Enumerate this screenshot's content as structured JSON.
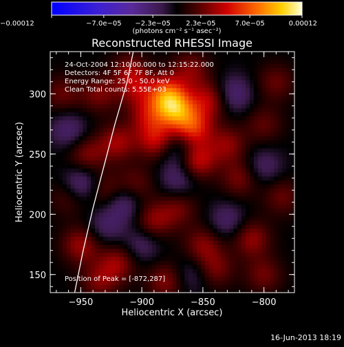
{
  "chart_data": {
    "type": "heatmap",
    "title": "Reconstructed RHESSI Image",
    "xlabel": "Heliocentric X (arcsec)",
    "ylabel": "Heliocentric Y (arcsec)",
    "xlim": [
      -975,
      -775
    ],
    "ylim": [
      135,
      335
    ],
    "x_ticks": [
      {
        "value": -950,
        "label": "−950"
      },
      {
        "value": -900,
        "label": "−900"
      },
      {
        "value": -850,
        "label": "−850"
      },
      {
        "value": -800,
        "label": "−800"
      }
    ],
    "y_ticks": [
      {
        "value": 150,
        "label": "150"
      },
      {
        "value": 200,
        "label": "200"
      },
      {
        "value": 250,
        "label": "250"
      },
      {
        "value": 300,
        "label": "300"
      }
    ],
    "colorbar": {
      "range": [
        -0.00012,
        0.00012
      ],
      "unit_label": "(photons cm⁻² s⁻¹ asec⁻²)",
      "ticks": [
        {
          "value": -0.00012,
          "label": "−0.00012"
        },
        {
          "value": -7e-05,
          "label": "−7.0e−05"
        },
        {
          "value": -2.3e-05,
          "label": "−2.3e−05"
        },
        {
          "value": 2.3e-05,
          "label": "2.3e−05"
        },
        {
          "value": 7e-05,
          "label": "7.0e−05"
        },
        {
          "value": 0.00012,
          "label": "0.00012"
        }
      ]
    },
    "annotations": [
      "24-Oct-2004 12:10:00.000 to 12:15:22.000",
      "Detectors: 4F 5F 6F 7F 8F, Att 0",
      "Energy Range: 25.0 - 50.0 keV",
      "Clean     Total counts: 5.55E+03"
    ],
    "peak_label": "Position of Peak = [-872,287]",
    "peak": [
      -872,
      287
    ],
    "limb_curve": [
      [
        -955,
        135
      ],
      [
        -948,
        170
      ],
      [
        -940,
        205
      ],
      [
        -931,
        240
      ],
      [
        -922,
        275
      ],
      [
        -912,
        310
      ],
      [
        -907,
        335
      ]
    ],
    "sources": [
      [
        -872,
        287,
        7e-05
      ],
      [
        -858,
        272,
        5.5e-05
      ],
      [
        -880,
        300,
        6e-05
      ],
      [
        -888,
        262,
        4.5e-05
      ],
      [
        -845,
        295,
        4e-05
      ],
      [
        -855,
        245,
        4.8e-05
      ],
      [
        -830,
        258,
        3.2e-05
      ],
      [
        -895,
        282,
        3.5e-05
      ],
      [
        -905,
        305,
        3e-05
      ],
      [
        -920,
        260,
        3.6e-05
      ],
      [
        -935,
        300,
        2.8e-05
      ],
      [
        -945,
        250,
        3e-05
      ],
      [
        -930,
        220,
        2.6e-05
      ],
      [
        -965,
        300,
        2.4e-05
      ],
      [
        -890,
        195,
        3.2e-05
      ],
      [
        -870,
        205,
        2.5e-05
      ],
      [
        -850,
        175,
        3e-05
      ],
      [
        -820,
        230,
        2.8e-05
      ],
      [
        -800,
        275,
        2.2e-05
      ],
      [
        -790,
        310,
        2.4e-05
      ],
      [
        -810,
        180,
        3.4e-05
      ],
      [
        -840,
        155,
        2.8e-05
      ],
      [
        -880,
        145,
        3.2e-05
      ],
      [
        -920,
        160,
        3.4e-05
      ],
      [
        -950,
        175,
        3.6e-05
      ],
      [
        -935,
        145,
        2.8e-05
      ],
      [
        -960,
        215,
        2.2e-05
      ],
      [
        -905,
        225,
        2.4e-05
      ],
      [
        -785,
        215,
        2.4e-05
      ],
      [
        -800,
        150,
        2.6e-05
      ],
      [
        -860,
        320,
        3e-05
      ],
      [
        -910,
        320,
        2.6e-05
      ],
      [
        -950,
        225,
        -3.5e-05
      ],
      [
        -915,
        210,
        -3e-05
      ],
      [
        -870,
        230,
        -2.6e-05
      ],
      [
        -825,
        300,
        -3e-05
      ],
      [
        -800,
        240,
        -2.2e-05
      ],
      [
        -830,
        195,
        -2.4e-05
      ],
      [
        -860,
        150,
        -2e-05
      ],
      [
        -900,
        175,
        -2.2e-05
      ],
      [
        -960,
        270,
        -2.6e-05
      ],
      [
        -930,
        190,
        -2.2e-05
      ],
      [
        -870,
        255,
        -2.8e-05
      ]
    ]
  },
  "footer": {
    "timestamp": "16-Jun-2013 18:19"
  }
}
